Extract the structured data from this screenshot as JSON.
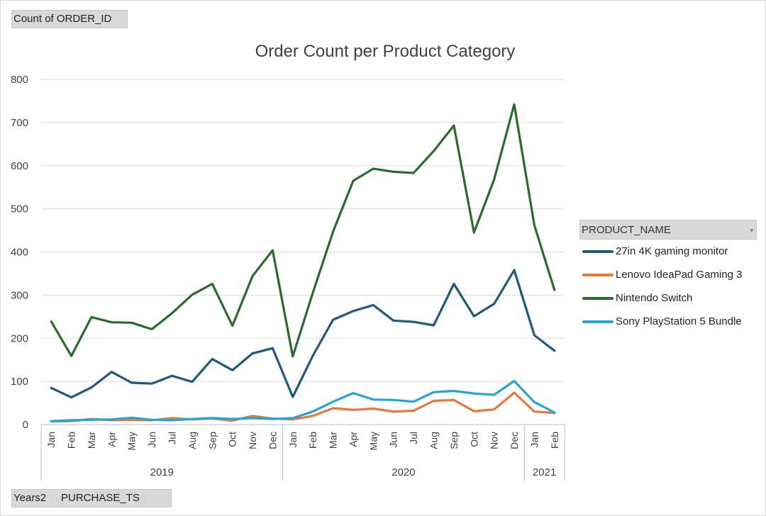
{
  "field_buttons": {
    "value_field": "Count of ORDER_ID",
    "axis_field_1": "Years2",
    "axis_field_2": "PURCHASE_TS"
  },
  "legend": {
    "header": "PRODUCT_NAME"
  },
  "chart_data": {
    "type": "line",
    "title": "Order Count per Product Category",
    "xlabel": "",
    "ylabel": "",
    "ylim": [
      0,
      800
    ],
    "yticks": [
      0,
      100,
      200,
      300,
      400,
      500,
      600,
      700,
      800
    ],
    "grid": true,
    "legend_position": "right",
    "categories": [
      "Jan",
      "Feb",
      "Mar",
      "Apr",
      "May",
      "Jun",
      "Jul",
      "Aug",
      "Sep",
      "Oct",
      "Nov",
      "Dec",
      "Jan",
      "Feb",
      "Mar",
      "Apr",
      "May",
      "Jun",
      "Jul",
      "Aug",
      "Sep",
      "Oct",
      "Nov",
      "Dec",
      "Jan",
      "Feb"
    ],
    "year_groups": [
      {
        "label": "2019",
        "count": 12
      },
      {
        "label": "2020",
        "count": 12
      },
      {
        "label": "2021",
        "count": 2
      }
    ],
    "series": [
      {
        "name": "27in 4K gaming monitor",
        "color": "#1f5a7d",
        "values": [
          85,
          63,
          86,
          122,
          97,
          95,
          113,
          99,
          152,
          126,
          165,
          177,
          64,
          160,
          243,
          263,
          277,
          241,
          238,
          230,
          326,
          251,
          280,
          358,
          207,
          171
        ]
      },
      {
        "name": "Lenovo IdeaPad Gaming 3",
        "color": "#e9773c",
        "values": [
          7,
          8,
          13,
          10,
          11,
          10,
          15,
          12,
          14,
          9,
          20,
          14,
          12,
          20,
          38,
          34,
          37,
          30,
          32,
          55,
          57,
          31,
          35,
          74,
          30,
          27
        ]
      },
      {
        "name": "Nintendo Switch",
        "color": "#2b6b2b",
        "values": [
          239,
          159,
          249,
          237,
          236,
          221,
          258,
          301,
          326,
          229,
          344,
          404,
          158,
          306,
          447,
          565,
          593,
          586,
          583,
          634,
          693,
          445,
          568,
          742,
          462,
          312
        ]
      },
      {
        "name": "Sony PlayStation 5 Bundle",
        "color": "#23a5d6",
        "values": [
          8,
          10,
          11,
          12,
          16,
          11,
          10,
          13,
          15,
          13,
          15,
          13,
          15,
          30,
          53,
          73,
          58,
          57,
          53,
          75,
          78,
          72,
          69,
          101,
          52,
          28
        ]
      }
    ]
  }
}
